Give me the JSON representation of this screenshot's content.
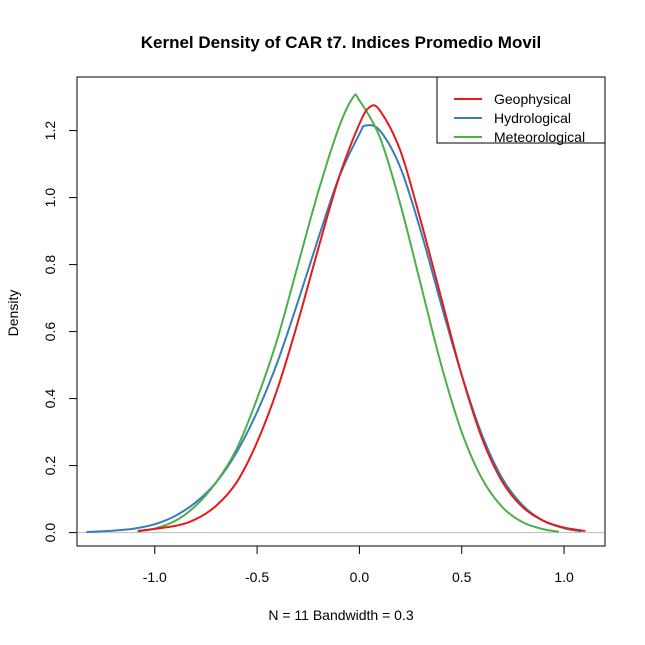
{
  "chart_data": {
    "type": "line",
    "title": "Kernel Density of CAR t7. Indices Promedio Movil",
    "xlabel": "N = 11   Bandwidth = 0.3",
    "ylabel": "Density",
    "xlim": [
      -1.38,
      1.2
    ],
    "ylim": [
      -0.04,
      1.36
    ],
    "x_ticks": [
      -1.0,
      -0.5,
      0.0,
      0.5,
      1.0
    ],
    "x_tick_labels": [
      "-1.0",
      "-0.5",
      "0.0",
      "0.5",
      "1.0"
    ],
    "y_ticks": [
      0.0,
      0.2,
      0.4,
      0.6,
      0.8,
      1.0,
      1.2
    ],
    "y_tick_labels": [
      "0.0",
      "0.2",
      "0.4",
      "0.6",
      "0.8",
      "1.0",
      "1.2"
    ],
    "legend_position": "top-right",
    "baseline": 0,
    "series": [
      {
        "name": "Geophysical",
        "color": "#e41a1c",
        "x": [
          -1.08,
          -0.9,
          -0.8,
          -0.7,
          -0.6,
          -0.5,
          -0.4,
          -0.3,
          -0.2,
          -0.1,
          0.0,
          0.05,
          0.1,
          0.2,
          0.3,
          0.4,
          0.5,
          0.6,
          0.7,
          0.8,
          0.9,
          1.0,
          1.1
        ],
        "y": [
          0.005,
          0.02,
          0.04,
          0.08,
          0.15,
          0.27,
          0.43,
          0.63,
          0.85,
          1.06,
          1.22,
          1.27,
          1.26,
          1.14,
          0.93,
          0.7,
          0.47,
          0.28,
          0.15,
          0.075,
          0.035,
          0.015,
          0.005
        ]
      },
      {
        "name": "Hydrological",
        "color": "#377eb8",
        "x": [
          -1.33,
          -1.2,
          -1.1,
          -1.0,
          -0.9,
          -0.8,
          -0.7,
          -0.6,
          -0.5,
          -0.4,
          -0.3,
          -0.2,
          -0.1,
          0.0,
          0.03,
          0.1,
          0.2,
          0.3,
          0.4,
          0.5,
          0.6,
          0.7,
          0.8,
          0.9,
          1.0,
          1.08
        ],
        "y": [
          0.002,
          0.006,
          0.012,
          0.025,
          0.05,
          0.09,
          0.15,
          0.24,
          0.36,
          0.51,
          0.69,
          0.88,
          1.06,
          1.19,
          1.215,
          1.2,
          1.09,
          0.9,
          0.68,
          0.47,
          0.29,
          0.16,
          0.08,
          0.035,
          0.013,
          0.004
        ]
      },
      {
        "name": "Meteorological",
        "color": "#4daf4a",
        "x": [
          -1.08,
          -1.0,
          -0.9,
          -0.8,
          -0.7,
          -0.6,
          -0.5,
          -0.4,
          -0.3,
          -0.2,
          -0.1,
          -0.03,
          0.0,
          0.1,
          0.2,
          0.3,
          0.4,
          0.5,
          0.6,
          0.7,
          0.8,
          0.9,
          0.97
        ],
        "y": [
          0.004,
          0.012,
          0.035,
          0.08,
          0.15,
          0.25,
          0.4,
          0.58,
          0.8,
          1.02,
          1.21,
          1.3,
          1.29,
          1.18,
          0.98,
          0.74,
          0.5,
          0.3,
          0.16,
          0.075,
          0.03,
          0.01,
          0.003
        ]
      }
    ]
  }
}
